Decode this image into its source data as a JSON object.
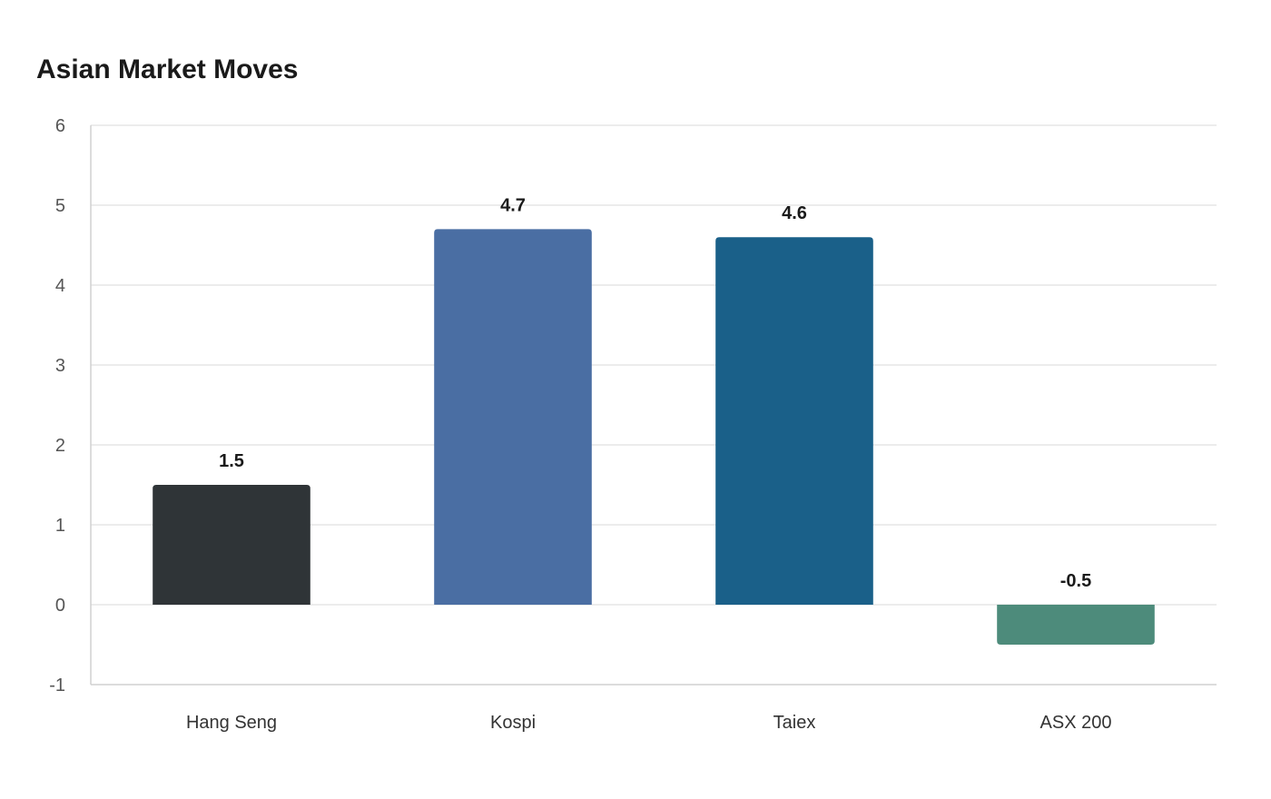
{
  "chart_data": {
    "type": "bar",
    "title": "Asian Market Moves",
    "xlabel": "",
    "ylabel": "",
    "categories": [
      "Hang Seng",
      "Kospi",
      "Taiex",
      "ASX 200"
    ],
    "values": [
      1.5,
      4.7,
      4.6,
      -0.5
    ],
    "value_labels": [
      "1.5",
      "4.7",
      "4.6",
      "-0.5"
    ],
    "colors": [
      "#2f3437",
      "#4a6ea3",
      "#1a6089",
      "#4d8b7b"
    ],
    "ylim": [
      -1,
      6
    ],
    "yticks": [
      -1,
      0,
      1,
      2,
      3,
      4,
      5,
      6
    ],
    "ytick_labels": [
      "-1",
      "0",
      "1",
      "2",
      "3",
      "4",
      "5",
      "6"
    ],
    "grid": true,
    "legend": "none"
  }
}
